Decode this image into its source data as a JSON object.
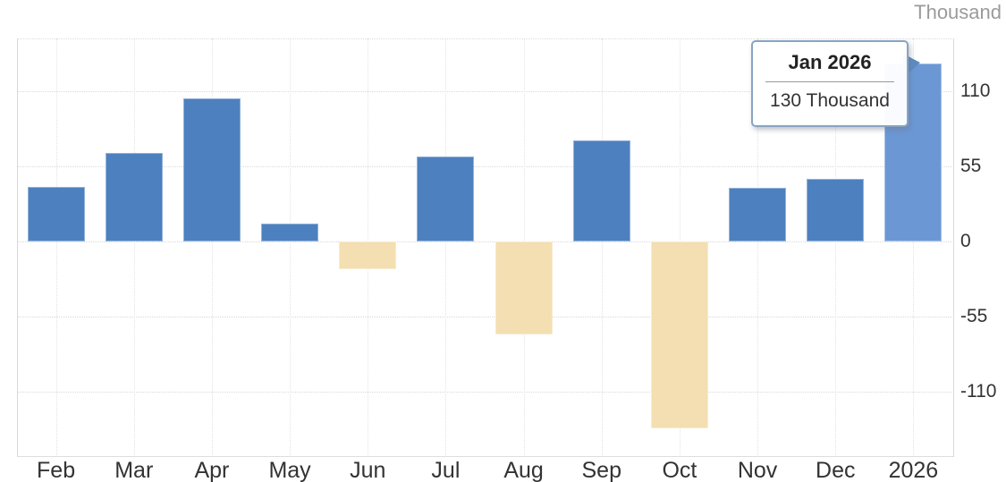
{
  "unit_label": "Thousand",
  "tooltip": {
    "title": "Jan 2026",
    "value": "130 Thousand"
  },
  "y_axis": {
    "tick_labels": [
      "110",
      "55",
      "0",
      "-55",
      "-110"
    ],
    "tick_values": [
      110,
      55,
      0,
      -55,
      -110
    ]
  },
  "chart_data": {
    "type": "bar",
    "title": "",
    "xlabel": "",
    "ylabel": "Thousand",
    "categories": [
      "Feb",
      "Mar",
      "Apr",
      "May",
      "Jun",
      "Jul",
      "Aug",
      "Sep",
      "Oct",
      "Nov",
      "Dec",
      "2026"
    ],
    "values": [
      40,
      65,
      105,
      13,
      -20,
      62,
      -68,
      74,
      -137,
      39,
      46,
      130
    ],
    "highlighted_index": 11,
    "highlighted_point": {
      "label": "Jan 2026",
      "value": 130,
      "unit": "Thousand"
    },
    "ylim": [
      -152,
      149
    ],
    "grid": "dotted",
    "legend": "none",
    "colors": {
      "positive_bar": "#4d80bf",
      "negative_bar": "#f3dfb1",
      "highlighted_bar": "#6b97d5",
      "axis_text": "#333333",
      "unit_text": "#9b9b9b",
      "tooltip_border": "#87a4c2",
      "tooltip_pointer": "#5e8ac2"
    }
  }
}
